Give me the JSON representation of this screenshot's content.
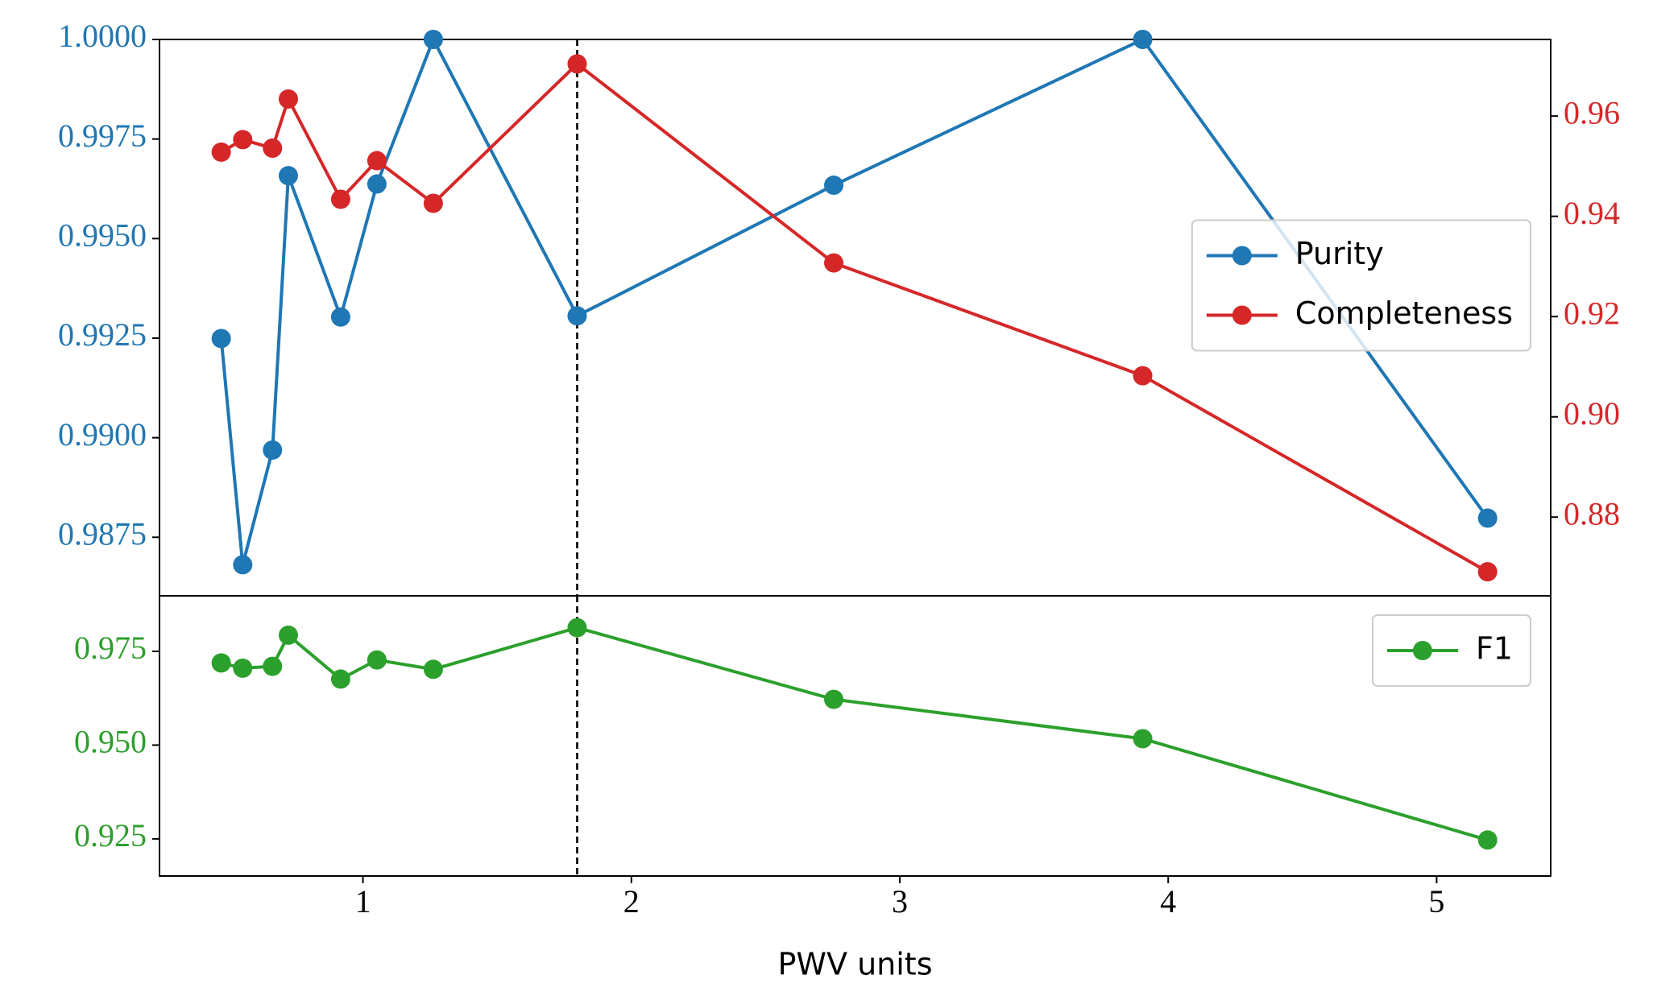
{
  "chart_data": [
    {
      "type": "line",
      "x": [
        0.472,
        0.552,
        0.663,
        0.722,
        0.917,
        1.052,
        1.262,
        1.798,
        2.754,
        3.905,
        5.19
      ],
      "xlim": [
        0.242,
        5.425
      ],
      "ylim": [
        0.98603,
        1.0
      ],
      "yticks": [
        {
          "value": 1.0,
          "label": "1.0000"
        },
        0.9975,
        {
          "value": 0.995,
          "label": "0.9950"
        },
        0.9925,
        {
          "value": 0.99,
          "label": "0.9900"
        },
        0.9875
      ],
      "y2lim": [
        0.8643,
        0.97528
      ],
      "y2ticks": [
        0.96,
        0.94,
        0.92,
        {
          "value": 0.9,
          "label": "0.90"
        },
        0.88
      ],
      "vline": 1.798,
      "legend": "center right",
      "series": [
        {
          "name": "Purity",
          "color": "#1f77b4",
          "values": [
            0.99249,
            0.98681,
            0.98969,
            0.99658,
            0.99303,
            0.99637,
            1.0,
            0.99306,
            0.99634,
            1.0,
            0.98798
          ]
        },
        {
          "name": "Completeness",
          "color": "#d62728",
          "axis": "y2",
          "values": [
            0.9528,
            0.9553,
            0.9536,
            0.9634,
            0.9434,
            0.9511,
            0.9426,
            0.9704,
            0.9307,
            0.9082,
            0.8691
          ]
        }
      ]
    },
    {
      "type": "line",
      "x": [
        0.472,
        0.552,
        0.663,
        0.722,
        0.917,
        1.052,
        1.262,
        1.798,
        2.754,
        3.905,
        5.19
      ],
      "xlim": [
        0.242,
        5.425
      ],
      "xticks": [
        1,
        2,
        3,
        4,
        5
      ],
      "xlabel": "PWV units",
      "ylim": [
        0.9151,
        0.9898
      ],
      "yticks": [
        0.975,
        {
          "value": 0.95,
          "label": "0.950"
        },
        0.925
      ],
      "vline": 1.798,
      "legend": "upper right",
      "series": [
        {
          "name": "F1",
          "color": "#2ca02c",
          "values": [
            0.9719,
            0.9705,
            0.971,
            0.9793,
            0.9676,
            0.9727,
            0.9702,
            0.9813,
            0.9622,
            0.9517,
            0.9247
          ]
        }
      ]
    }
  ]
}
